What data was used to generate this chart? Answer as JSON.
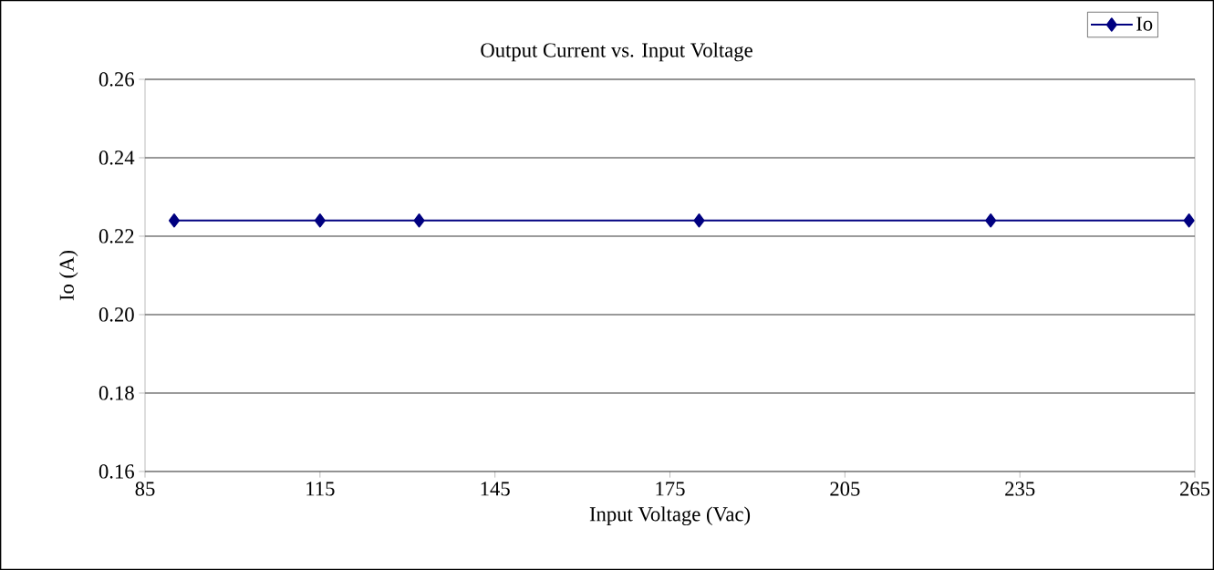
{
  "chart_data": {
    "type": "line",
    "title": "Output Current vs. Input Voltage",
    "xlabel": "Input Voltage (Vac)",
    "ylabel": "Io (A)",
    "x": [
      90,
      115,
      132,
      180,
      230,
      264
    ],
    "series": [
      {
        "name": "Io",
        "color": "#000080",
        "values": [
          0.224,
          0.224,
          0.224,
          0.224,
          0.224,
          0.224
        ]
      }
    ],
    "xlim": [
      85,
      265
    ],
    "xticks": [
      85,
      115,
      145,
      175,
      205,
      235,
      265
    ],
    "ylim": [
      0.16,
      0.26
    ],
    "yticks": [
      0.16,
      0.18,
      {
        "value": 0.2,
        "label": "0.20"
      },
      0.22,
      0.24,
      0.26
    ],
    "grid": "y",
    "legend": "top right",
    "marker": "diamond",
    "line_style": "solid"
  }
}
